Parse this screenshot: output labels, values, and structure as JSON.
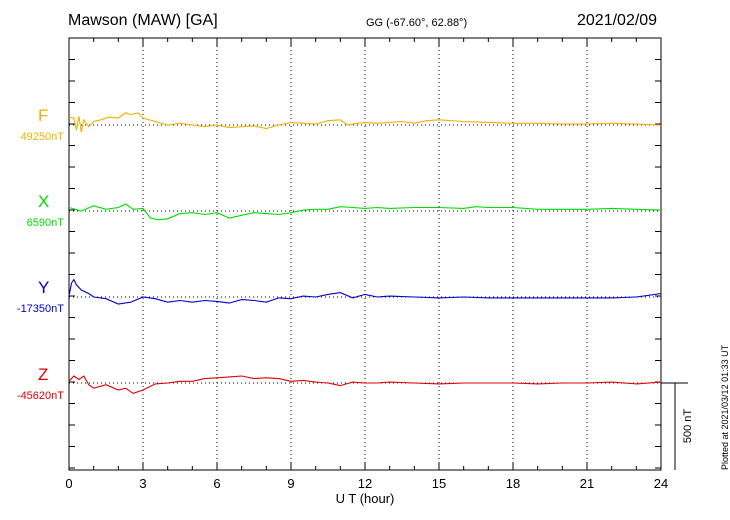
{
  "header": {
    "station": "Mawson (MAW)  [GA]",
    "coords": "GG (-67.60°,  62.88°)",
    "date": "2021/02/09"
  },
  "plotted_note": "Plotted at 2021/03/12 01:33 UT",
  "colors": {
    "F": "#f0b000",
    "X": "#00dd00",
    "Y": "#0000cc",
    "Z": "#dd0000"
  },
  "chart_data": {
    "type": "line",
    "title": "Mawson (MAW)  [GA]",
    "xlabel": "U T (hour)",
    "xlim": [
      0,
      24
    ],
    "xticks": [
      0,
      3,
      6,
      9,
      12,
      15,
      18,
      21,
      24
    ],
    "scale_bar": {
      "label": "500 nT",
      "value_nT": 500
    },
    "grid": "dotted vertical every 3 hours; dotted baseline per component",
    "series": [
      {
        "name": "F",
        "baseline_label": "49250nT",
        "baseline_nT": 49250,
        "color": "#f0b000",
        "points": [
          [
            0,
            45
          ],
          [
            0.2,
            40
          ],
          [
            0.3,
            -30
          ],
          [
            0.4,
            50
          ],
          [
            0.5,
            -40
          ],
          [
            0.6,
            30
          ],
          [
            0.8,
            -10
          ],
          [
            1,
            20
          ],
          [
            1.3,
            30
          ],
          [
            1.6,
            45
          ],
          [
            2,
            40
          ],
          [
            2.3,
            70
          ],
          [
            2.5,
            60
          ],
          [
            2.8,
            70
          ],
          [
            3,
            40
          ],
          [
            3.5,
            20
          ],
          [
            4,
            0
          ],
          [
            4.5,
            10
          ],
          [
            5,
            0
          ],
          [
            5.5,
            -10
          ],
          [
            6,
            0
          ],
          [
            6.5,
            -15
          ],
          [
            7,
            -10
          ],
          [
            7.5,
            -5
          ],
          [
            8,
            -20
          ],
          [
            8.5,
            0
          ],
          [
            9,
            15
          ],
          [
            9.5,
            10
          ],
          [
            10,
            5
          ],
          [
            10.5,
            25
          ],
          [
            11,
            30
          ],
          [
            11.3,
            0
          ],
          [
            11.7,
            10
          ],
          [
            12,
            15
          ],
          [
            12.5,
            10
          ],
          [
            13,
            15
          ],
          [
            13.5,
            20
          ],
          [
            14,
            10
          ],
          [
            14.5,
            25
          ],
          [
            15,
            30
          ],
          [
            16,
            20
          ],
          [
            17,
            15
          ],
          [
            18,
            10
          ],
          [
            19,
            10
          ],
          [
            20,
            5
          ],
          [
            21,
            5
          ],
          [
            22,
            10
          ],
          [
            23,
            5
          ],
          [
            24,
            0
          ]
        ]
      },
      {
        "name": "X",
        "baseline_label": "6590nT",
        "baseline_nT": 6590,
        "color": "#00dd00",
        "points": [
          [
            0,
            20
          ],
          [
            0.5,
            0
          ],
          [
            1,
            30
          ],
          [
            1.5,
            10
          ],
          [
            2,
            20
          ],
          [
            2.3,
            40
          ],
          [
            2.6,
            10
          ],
          [
            3,
            15
          ],
          [
            3.3,
            -40
          ],
          [
            3.6,
            -50
          ],
          [
            4,
            -45
          ],
          [
            4.5,
            -15
          ],
          [
            5,
            -10
          ],
          [
            5.5,
            -20
          ],
          [
            6,
            -10
          ],
          [
            6.5,
            -40
          ],
          [
            7,
            -25
          ],
          [
            7.5,
            -10
          ],
          [
            8,
            -15
          ],
          [
            8.5,
            -20
          ],
          [
            9,
            -10
          ],
          [
            9.5,
            5
          ],
          [
            10,
            10
          ],
          [
            10.5,
            10
          ],
          [
            11,
            25
          ],
          [
            11.5,
            20
          ],
          [
            12,
            15
          ],
          [
            12.5,
            20
          ],
          [
            13,
            15
          ],
          [
            14,
            20
          ],
          [
            15,
            20
          ],
          [
            16,
            15
          ],
          [
            16.5,
            25
          ],
          [
            17,
            20
          ],
          [
            18,
            20
          ],
          [
            19,
            10
          ],
          [
            20,
            10
          ],
          [
            21,
            10
          ],
          [
            22,
            15
          ],
          [
            23,
            10
          ],
          [
            24,
            5
          ]
        ]
      },
      {
        "name": "Y",
        "baseline_label": "-17350nT",
        "baseline_nT": -17350,
        "color": "#0000cc",
        "points": [
          [
            0,
            5
          ],
          [
            0.1,
            80
          ],
          [
            0.2,
            100
          ],
          [
            0.3,
            70
          ],
          [
            0.5,
            40
          ],
          [
            0.8,
            20
          ],
          [
            1,
            0
          ],
          [
            1.5,
            -10
          ],
          [
            2,
            -40
          ],
          [
            2.5,
            -30
          ],
          [
            3,
            0
          ],
          [
            3.5,
            -10
          ],
          [
            4,
            -30
          ],
          [
            4.5,
            -20
          ],
          [
            5,
            -30
          ],
          [
            5.5,
            -20
          ],
          [
            6,
            -25
          ],
          [
            6.5,
            -35
          ],
          [
            7,
            -15
          ],
          [
            7.5,
            -20
          ],
          [
            8,
            -30
          ],
          [
            8.5,
            -5
          ],
          [
            9,
            -10
          ],
          [
            9.5,
            5
          ],
          [
            10,
            0
          ],
          [
            10.5,
            15
          ],
          [
            11,
            25
          ],
          [
            11.5,
            -5
          ],
          [
            12,
            15
          ],
          [
            12.5,
            0
          ],
          [
            13,
            5
          ],
          [
            14,
            0
          ],
          [
            15,
            -5
          ],
          [
            16,
            0
          ],
          [
            17,
            -5
          ],
          [
            18,
            -5
          ],
          [
            19,
            -5
          ],
          [
            20,
            -5
          ],
          [
            21,
            -5
          ],
          [
            22,
            -5
          ],
          [
            23,
            0
          ],
          [
            23.5,
            10
          ],
          [
            24,
            20
          ]
        ]
      },
      {
        "name": "Z",
        "baseline_label": "-45620nT",
        "baseline_nT": -45620,
        "color": "#dd0000",
        "points": [
          [
            0,
            10
          ],
          [
            0.2,
            40
          ],
          [
            0.4,
            20
          ],
          [
            0.6,
            40
          ],
          [
            0.8,
            -10
          ],
          [
            1,
            -30
          ],
          [
            1.5,
            -10
          ],
          [
            2,
            -40
          ],
          [
            2.3,
            -30
          ],
          [
            2.6,
            -60
          ],
          [
            3,
            -40
          ],
          [
            3.5,
            -5
          ],
          [
            4,
            0
          ],
          [
            4.5,
            10
          ],
          [
            5,
            10
          ],
          [
            5.5,
            25
          ],
          [
            6,
            30
          ],
          [
            6.5,
            35
          ],
          [
            7,
            40
          ],
          [
            7.5,
            25
          ],
          [
            8,
            30
          ],
          [
            8.5,
            25
          ],
          [
            9,
            10
          ],
          [
            9.5,
            15
          ],
          [
            10,
            5
          ],
          [
            10.5,
            0
          ],
          [
            11,
            -15
          ],
          [
            11.5,
            5
          ],
          [
            12,
            0
          ],
          [
            12.5,
            0
          ],
          [
            13,
            5
          ],
          [
            14,
            0
          ],
          [
            15,
            -5
          ],
          [
            16,
            0
          ],
          [
            17,
            0
          ],
          [
            18,
            0
          ],
          [
            19,
            -5
          ],
          [
            20,
            0
          ],
          [
            21,
            0
          ],
          [
            22,
            5
          ],
          [
            23,
            -5
          ],
          [
            24,
            5
          ]
        ]
      }
    ]
  }
}
